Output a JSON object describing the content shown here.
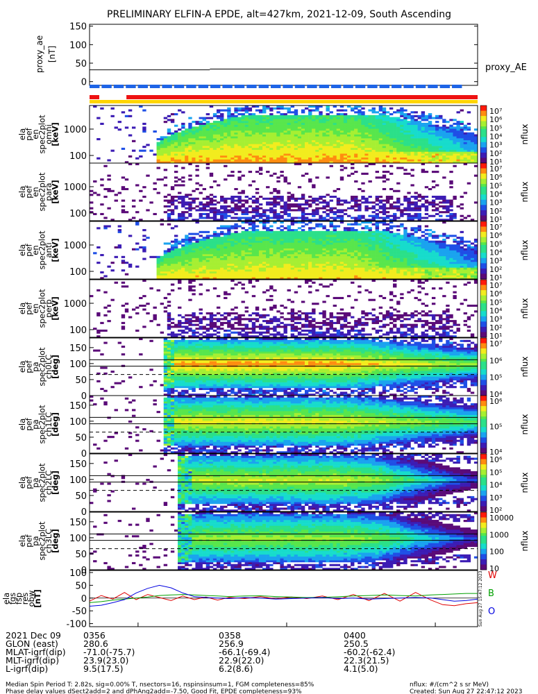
{
  "title": "PRELIMINARY ELFIN-A EPDE, alt=427km, 2021-12-09, South Ascending",
  "colors": {
    "red": "#ee1111",
    "blue": "#1e64e6",
    "yellow": "#ffd400",
    "green": "#00a000",
    "trace_red": "#e00000",
    "trace_blue": "#0000e0"
  },
  "colormap": [
    "#ffffff",
    "#5a0a78",
    "#3c1cb4",
    "#1f4fe6",
    "#1aa3ef",
    "#17dccc",
    "#2be089",
    "#58e64c",
    "#a6ef32",
    "#f2ec1e",
    "#ff8c10",
    "#ff1a0a"
  ],
  "proxy_ae": {
    "ylabel": [
      "proxy_ae",
      "[nT]"
    ],
    "ticks": [
      "150",
      "100",
      "50",
      "0"
    ],
    "tick_values": [
      150,
      100,
      50,
      0
    ],
    "ylim": [
      -10,
      155
    ],
    "side_label": "proxy_AE",
    "steps": [
      {
        "x0": 0.0,
        "x1": 0.31,
        "y": 32
      },
      {
        "x0": 0.31,
        "x1": 0.8,
        "y": 34
      },
      {
        "x0": 0.8,
        "x1": 1.0,
        "y": 36
      }
    ]
  },
  "status_bars": {
    "blue_dashes": {
      "start": 0.0,
      "end": 0.965,
      "count": 31
    },
    "red_segments": [
      [
        0.0,
        0.025
      ],
      [
        0.095,
        1.0
      ]
    ],
    "yellow_segment": [
      0.0,
      1.0
    ]
  },
  "spectro_panels": [
    {
      "ylabel": [
        "ela",
        "pef",
        "en",
        "spec2plot",
        "omni",
        "[keV]"
      ],
      "ticks": [
        "1000",
        "100"
      ],
      "tick_values": [
        1000,
        100
      ],
      "cb_label": "nflux",
      "cb_ticks": [
        "10⁷",
        "10⁶",
        "10⁵",
        "10⁴",
        "10³",
        "10²",
        "10¹"
      ],
      "kind": "en",
      "density": 1.0,
      "lines": []
    },
    {
      "ylabel": [
        "ela",
        "pef",
        "en",
        "spec2plot",
        "para",
        "[keV]"
      ],
      "ticks": [
        "1000",
        "100"
      ],
      "tick_values": [
        1000,
        100
      ],
      "cb_label": "nflux",
      "cb_ticks": [
        "10⁷",
        "10⁶",
        "10⁵",
        "10⁴",
        "10³",
        "10²",
        "10¹"
      ],
      "kind": "en_sparse",
      "density": 0.45,
      "lines": []
    },
    {
      "ylabel": [
        "ela",
        "pef",
        "en",
        "spec2plot",
        "anti",
        "[keV]"
      ],
      "ticks": [
        "1000",
        "100"
      ],
      "tick_values": [
        1000,
        100
      ],
      "cb_label": "nflux",
      "cb_ticks": [
        "10⁷",
        "10⁶",
        "10⁵",
        "10⁴",
        "10³",
        "10²",
        "10¹"
      ],
      "kind": "en",
      "density": 0.95,
      "lines": []
    },
    {
      "ylabel": [
        "ela",
        "pef",
        "en",
        "spec2plot",
        "perp",
        "[keV]"
      ],
      "ticks": [
        "1000",
        "100"
      ],
      "tick_values": [
        1000,
        100
      ],
      "cb_label": "nflux",
      "cb_ticks": [
        "10⁷",
        "10⁶",
        "10⁵",
        "10⁴",
        "10³",
        "10²",
        "10¹"
      ],
      "kind": "en_sparse",
      "density": 0.4,
      "lines": []
    },
    {
      "ylabel": [
        "ela",
        "pef",
        "pa",
        "spec2plot",
        "ch0LC",
        "[deg]"
      ],
      "ticks": [
        "150",
        "100",
        "50",
        "0"
      ],
      "tick_values": [
        150,
        100,
        50,
        0
      ],
      "cb_label": "nflux",
      "cb_ticks": [
        "10⁷",
        "10⁶",
        "10⁵",
        "10⁴"
      ],
      "kind": "pa",
      "density": 1.0,
      "lines": [
        112,
        92,
        66
      ]
    },
    {
      "ylabel": [
        "ela",
        "pef",
        "pa",
        "spec2plot",
        "ch1LC",
        "[deg]"
      ],
      "ticks": [
        "150",
        "100",
        "50",
        "0"
      ],
      "tick_values": [
        150,
        100,
        50,
        0
      ],
      "cb_label": "nflux",
      "cb_ticks": [
        "10⁶",
        "10⁵",
        "10⁴"
      ],
      "kind": "pa",
      "density": 0.9,
      "lines": [
        112,
        92,
        66
      ]
    },
    {
      "ylabel": [
        "ela",
        "pef",
        "pa",
        "spec2plot",
        "ch2LC",
        "[deg]"
      ],
      "ticks": [
        "150",
        "100",
        "50",
        "0"
      ],
      "tick_values": [
        150,
        100,
        50,
        0
      ],
      "cb_label": "nflux",
      "cb_ticks": [
        "10⁶",
        "10⁵",
        "10⁴",
        "10³",
        "10²"
      ],
      "kind": "pa2",
      "density": 0.85,
      "lines": [
        112,
        92,
        66
      ]
    },
    {
      "ylabel": [
        "ela",
        "pef",
        "pa",
        "spec2plot",
        "ch3LC",
        "[deg]"
      ],
      "ticks": [
        "150",
        "100",
        "50",
        "0"
      ],
      "tick_values": [
        150,
        100,
        50,
        0
      ],
      "cb_label": "nflux",
      "cb_ticks": [
        "10000",
        "1000",
        "100",
        "10"
      ],
      "kind": "pa2",
      "density": 0.8,
      "lines": [
        112,
        92,
        66
      ]
    }
  ],
  "fgm_panel": {
    "ylabel": [
      "ela",
      "fgs",
      "fsp",
      "res",
      "obw",
      "[nT]"
    ],
    "ticks": [
      "100",
      "50",
      "0",
      "-50",
      "-100"
    ],
    "tick_values": [
      100,
      50,
      0,
      -50,
      -100
    ],
    "ylim": [
      -112,
      108
    ],
    "legend": [
      {
        "label": "W",
        "color": "#e00000"
      },
      {
        "label": "B",
        "color": "#00a000"
      },
      {
        "label": "O",
        "color": "#0000e0"
      }
    ],
    "stamp": "Sun Aug 27 15:47:12 2023",
    "series": [
      {
        "name": "W",
        "color": "#e00000",
        "x": [
          0,
          0.03,
          0.06,
          0.09,
          0.12,
          0.15,
          0.18,
          0.21,
          0.24,
          0.27,
          0.3,
          0.33,
          0.36,
          0.4,
          0.44,
          0.48,
          0.52,
          0.56,
          0.6,
          0.64,
          0.68,
          0.72,
          0.76,
          0.8,
          0.84,
          0.88,
          0.91,
          0.94,
          0.97,
          1.0
        ],
        "y": [
          -12,
          10,
          -4,
          22,
          -6,
          14,
          2,
          -10,
          8,
          -6,
          4,
          -8,
          3,
          -2,
          6,
          -3,
          4,
          -2,
          8,
          -6,
          14,
          -10,
          18,
          -12,
          22,
          -8,
          -26,
          -30,
          -22,
          -18
        ]
      },
      {
        "name": "B",
        "color": "#00a000",
        "x": [
          0,
          0.03,
          0.06,
          0.09,
          0.12,
          0.15,
          0.18,
          0.21,
          0.24,
          0.27,
          0.3,
          0.33,
          0.36,
          0.4,
          0.44,
          0.48,
          0.52,
          0.56,
          0.6,
          0.64,
          0.68,
          0.72,
          0.76,
          0.8,
          0.84,
          0.88,
          0.91,
          0.94,
          0.97,
          1.0
        ],
        "y": [
          -18,
          -14,
          -8,
          -4,
          0,
          4,
          10,
          12,
          14,
          12,
          10,
          8,
          6,
          8,
          9,
          6,
          4,
          2,
          3,
          5,
          8,
          10,
          12,
          10,
          8,
          12,
          14,
          16,
          18,
          18
        ]
      },
      {
        "name": "O",
        "color": "#0000e0",
        "x": [
          0,
          0.03,
          0.06,
          0.09,
          0.12,
          0.15,
          0.18,
          0.21,
          0.24,
          0.27,
          0.3,
          0.33,
          0.36,
          0.4,
          0.44,
          0.48,
          0.52,
          0.56,
          0.6,
          0.64,
          0.68,
          0.72,
          0.76,
          0.8,
          0.84,
          0.88,
          0.91,
          0.94,
          0.97,
          1.0
        ],
        "y": [
          -32,
          -28,
          -18,
          -6,
          20,
          38,
          50,
          40,
          20,
          6,
          2,
          0,
          -2,
          2,
          0,
          -4,
          -2,
          0,
          2,
          -2,
          0,
          -4,
          -2,
          0,
          2,
          0,
          -6,
          -12,
          -10,
          -4
        ]
      }
    ]
  },
  "x_ticks": [
    {
      "label": "0356",
      "pos": 0.125
    },
    {
      "label": "0358",
      "pos": 0.508
    },
    {
      "label": "0400",
      "pos": 0.891
    }
  ],
  "footer_rows": [
    {
      "label": "2021 Dec 09",
      "v1": "0356",
      "v2": "0358",
      "v3": "0400"
    },
    {
      "label": "GLON (east)",
      "v1": "280.6",
      "v2": "256.9",
      "v3": "250.5"
    },
    {
      "label": "MLAT-igrf(dip)",
      "v1": "-71.0(-75.7)",
      "v2": "-66.1(-69.4)",
      "v3": "-60.2(-62.4)"
    },
    {
      "label": "MLT-igrf(dip)",
      "v1": "23.9(23.0)",
      "v2": "22.9(22.0)",
      "v3": "22.3(21.5)"
    },
    {
      "label": "L-igrf(dip)",
      "v1": "9.5(17.5)",
      "v2": "6.2(8.6)",
      "v3": "4.1(5.0)"
    }
  ],
  "notes": {
    "line1": "Median Spin Period T: 2.82s, sig=0.00% T, nsectors=16, nspinsinsum=1, FGM completeness=85%",
    "line2": "Phase delay values dSect2add=2 and dPhAng2add=-7.50, Good Fit, EPDE completeness=93%",
    "units": "nflux: #/(cm^2 s sr MeV)",
    "created": "Created: Sun Aug 27 22:47:12 2023"
  }
}
